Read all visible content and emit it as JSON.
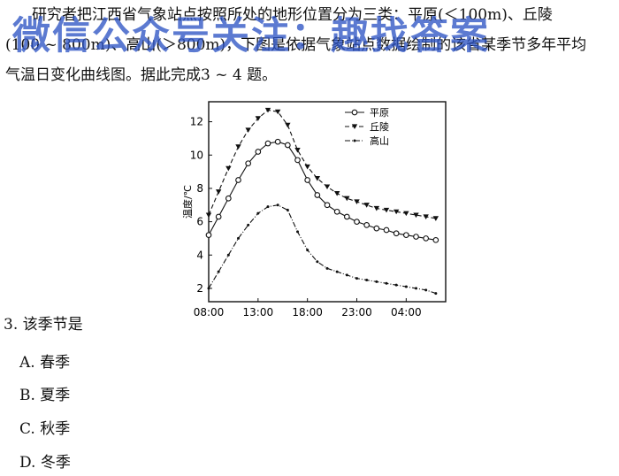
{
  "passage": {
    "line1": "研究者把江西省气象站点按照所处的地形位置分为三类：平原(＜100m)、丘陵",
    "line2": "(100 ~ 800m)、高山(＞800m)，下图是依据气象站点数据绘制的该省某季节多年平均",
    "line3": "气温日变化曲线图。据此完成3 ~ 4 题。"
  },
  "watermark": "微信公众号关注：趣找答案",
  "question": {
    "stem": "3. 该季节是",
    "options": [
      "A. 春季",
      "B. 夏季",
      "C. 秋季",
      "D. 冬季"
    ]
  },
  "chart_data": {
    "type": "line",
    "ylabel": "温度/℃",
    "xlabel": "",
    "x_ticks": [
      "08:00",
      "13:00",
      "18:00",
      "23:00",
      "04:00"
    ],
    "y_ticks": [
      2,
      4,
      6,
      8,
      10,
      12
    ],
    "xlim": [
      8,
      32
    ],
    "ylim": [
      1.2,
      13.2
    ],
    "legend_position": "top-right",
    "x": [
      8,
      9,
      10,
      11,
      12,
      13,
      14,
      15,
      16,
      17,
      18,
      19,
      20,
      21,
      22,
      23,
      24,
      25,
      26,
      27,
      28,
      29,
      30,
      31
    ],
    "series": [
      {
        "name": "平原",
        "marker": "open-circle",
        "line": "solid",
        "values": [
          5.2,
          6.3,
          7.4,
          8.5,
          9.5,
          10.2,
          10.7,
          10.8,
          10.6,
          9.7,
          8.5,
          7.6,
          7.0,
          6.6,
          6.3,
          6.0,
          5.8,
          5.6,
          5.5,
          5.3,
          5.2,
          5.1,
          5.0,
          4.9
        ]
      },
      {
        "name": "丘陵",
        "marker": "filled-triangle-down",
        "line": "dashed",
        "values": [
          6.4,
          7.8,
          9.2,
          10.5,
          11.5,
          12.2,
          12.7,
          12.6,
          11.8,
          10.3,
          9.3,
          8.6,
          8.1,
          7.7,
          7.4,
          7.2,
          7.0,
          6.8,
          6.7,
          6.6,
          6.5,
          6.4,
          6.3,
          6.2
        ]
      },
      {
        "name": "高山",
        "marker": "small-dot",
        "line": "dash-dot",
        "values": [
          2.0,
          3.0,
          4.0,
          5.0,
          5.8,
          6.5,
          6.9,
          7.0,
          6.7,
          5.4,
          4.3,
          3.6,
          3.2,
          3.0,
          2.8,
          2.6,
          2.5,
          2.4,
          2.3,
          2.2,
          2.1,
          2.0,
          1.9,
          1.7
        ]
      }
    ]
  }
}
